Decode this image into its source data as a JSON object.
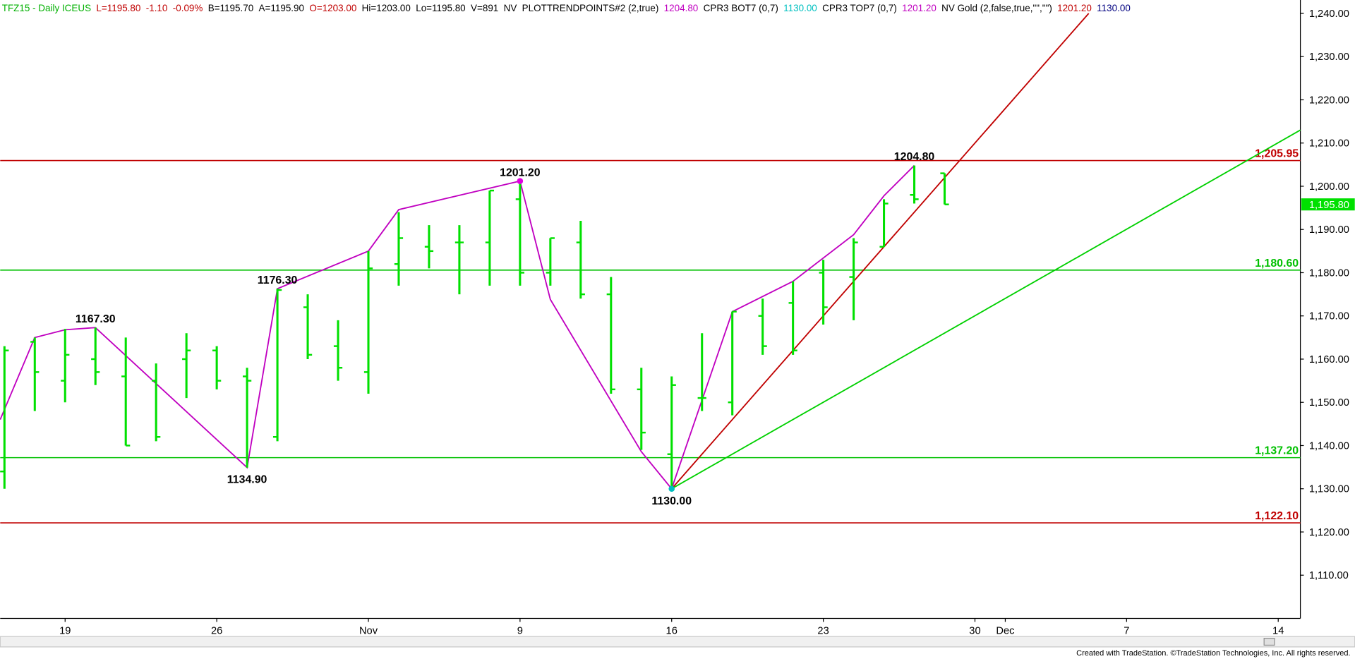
{
  "chart_data": {
    "type": "ohlc",
    "header": [
      {
        "text": "TFZ15 - Daily  ICEUS",
        "color": "#00b000"
      },
      {
        "text": "L=1195.80",
        "color": "#c00000"
      },
      {
        "text": "-1.10",
        "color": "#c00000"
      },
      {
        "text": "-0.09%",
        "color": "#c00000"
      },
      {
        "text": "B=1195.70",
        "color": "#000000"
      },
      {
        "text": "A=1195.90",
        "color": "#000000"
      },
      {
        "text": "O=1203.00",
        "color": "#c00000"
      },
      {
        "text": "Hi=1203.00",
        "color": "#000000"
      },
      {
        "text": "Lo=1195.80",
        "color": "#000000"
      },
      {
        "text": "V=891",
        "color": "#000000"
      },
      {
        "text": "NV",
        "color": "#000000"
      },
      {
        "text": "PLOTTRENDPOINTS#2 (2,true)",
        "color": "#000000"
      },
      {
        "text": "1204.80",
        "color": "#c000c0"
      },
      {
        "text": "CPR3 BOT7 (0,7)",
        "color": "#000000"
      },
      {
        "text": "1130.00",
        "color": "#00c0c0"
      },
      {
        "text": "CPR3 TOP7 (0,7)",
        "color": "#000000"
      },
      {
        "text": "1201.20",
        "color": "#c000c0"
      },
      {
        "text": "NV Gold (2,false,true,\"\",\"\")",
        "color": "#000000"
      },
      {
        "text": "1201.20",
        "color": "#c00000"
      },
      {
        "text": "1130.00",
        "color": "#000080"
      }
    ],
    "footer": "Created with TradeStation. ©TradeStation Technologies, Inc. All rights reserved.",
    "bar_color": "#00e000",
    "ohlc": {
      "x": [
        0,
        1,
        2,
        3,
        4,
        5,
        6,
        7,
        8,
        9,
        10,
        11,
        12,
        13,
        14,
        15,
        16,
        17,
        18,
        19,
        20,
        21,
        22,
        23,
        24,
        25,
        26,
        27,
        28,
        29,
        30,
        31
      ],
      "open": [
        1134,
        1164,
        1155,
        1160,
        1156,
        1155,
        1160,
        1162,
        1156,
        1142,
        1172,
        1163,
        1157,
        1182,
        1186,
        1187,
        1187,
        1197,
        1180,
        1187,
        1175,
        1153,
        1138,
        1151,
        1150,
        1170,
        1173,
        1180,
        1179,
        1186,
        1198,
        1203
      ],
      "high": [
        1163,
        1165,
        1167,
        1167.3,
        1165,
        1159,
        1166,
        1163,
        1158,
        1176.3,
        1175,
        1169,
        1185,
        1194,
        1191,
        1191,
        1199,
        1201.2,
        1188,
        1192,
        1179,
        1158,
        1156,
        1166,
        1171,
        1174,
        1178,
        1183,
        1188,
        1197,
        1204.8,
        1203
      ],
      "low": [
        1130,
        1148,
        1150,
        1154,
        1140,
        1141,
        1151,
        1153,
        1134.9,
        1141,
        1160,
        1155,
        1152,
        1177,
        1181,
        1175,
        1177,
        1177,
        1177,
        1174,
        1152,
        1139,
        1130,
        1148,
        1147,
        1161,
        1161,
        1168,
        1169,
        1186,
        1196,
        1195.8
      ],
      "close": [
        1162,
        1157,
        1161,
        1157,
        1140,
        1142,
        1162,
        1155,
        1155,
        1176,
        1161,
        1158,
        1181,
        1188,
        1185,
        1187,
        1199,
        1180,
        1188,
        1175,
        1153,
        1143,
        1154,
        1151,
        1171,
        1163,
        1162,
        1172,
        1187,
        1196,
        1197,
        1195.8
      ]
    },
    "levels": [
      {
        "value": 1205.95,
        "label": "1,205.95",
        "color": "#c00000"
      },
      {
        "value": 1180.6,
        "label": "1,180.60",
        "color": "#00c000"
      },
      {
        "value": 1137.2,
        "label": "1,137.20",
        "color": "#00c000"
      },
      {
        "value": 1122.1,
        "label": "1,122.10",
        "color": "#c00000"
      }
    ],
    "lines": [
      {
        "color": "#c000c0",
        "x": [
          -0.14,
          1,
          2,
          3,
          8,
          9,
          12,
          13,
          17,
          18,
          21,
          22,
          24,
          26,
          28,
          29,
          30
        ],
        "values": [
          1146,
          1165,
          1166.8,
          1167.3,
          1134.9,
          1176.3,
          1185,
          1194.6,
          1201.2,
          1173.8,
          1138.6,
          1130,
          1171,
          1178,
          1188.8,
          1197.8,
          1204.8
        ]
      },
      {
        "color": "#c00000",
        "x": [
          22,
          35.75
        ],
        "values": [
          1130,
          1240
        ]
      },
      {
        "color": "#00d000",
        "x": [
          22,
          42.73
        ],
        "values": [
          1130,
          1213
        ]
      }
    ],
    "markers": [
      {
        "x": 17,
        "value": 1201.2,
        "color": "#e000e0"
      },
      {
        "x": 22,
        "value": 1130,
        "color": "#00c0c0"
      }
    ],
    "annotations": [
      {
        "text": "1167.30",
        "x": 3,
        "value": 1167.3,
        "position": "above"
      },
      {
        "text": "1134.90",
        "x": 8,
        "value": 1134.9,
        "position": "below"
      },
      {
        "text": "1176.30",
        "x": 9,
        "value": 1176.3,
        "position": "above"
      },
      {
        "text": "1201.20",
        "x": 17,
        "value": 1201.2,
        "position": "above"
      },
      {
        "text": "1130.00",
        "x": 22,
        "value": 1130,
        "position": "below"
      },
      {
        "text": "1204.80",
        "x": 30,
        "value": 1204.8,
        "position": "above"
      }
    ],
    "last_price": {
      "value": 1195.8,
      "label": "1,195.80",
      "color": "#00e000"
    },
    "xlim": [
      -0.14,
      42.73
    ],
    "xticks": [
      {
        "value": 2,
        "label": "19"
      },
      {
        "value": 7,
        "label": "26"
      },
      {
        "value": 12,
        "label": "Nov"
      },
      {
        "value": 17,
        "label": "9"
      },
      {
        "value": 22,
        "label": "16"
      },
      {
        "value": 27,
        "label": "23"
      },
      {
        "value": 32,
        "label": "30"
      },
      {
        "value": 33,
        "label": "Dec"
      },
      {
        "value": 37,
        "label": "7"
      },
      {
        "value": 42,
        "label": "14"
      }
    ],
    "ylim": [
      1100,
      1242.5
    ],
    "yticks": [
      {
        "value": 1110,
        "label": "1,110.00"
      },
      {
        "value": 1120,
        "label": "1,120.00"
      },
      {
        "value": 1130,
        "label": "1,130.00"
      },
      {
        "value": 1140,
        "label": "1,140.00"
      },
      {
        "value": 1150,
        "label": "1,150.00"
      },
      {
        "value": 1160,
        "label": "1,160.00"
      },
      {
        "value": 1170,
        "label": "1,170.00"
      },
      {
        "value": 1180,
        "label": "1,180.00"
      },
      {
        "value": 1190,
        "label": "1,190.00"
      },
      {
        "value": 1200,
        "label": "1,200.00"
      },
      {
        "value": 1210,
        "label": "1,210.00"
      },
      {
        "value": 1220,
        "label": "1,220.00"
      },
      {
        "value": 1230,
        "label": "1,230.00"
      },
      {
        "value": 1240,
        "label": "1,240.00"
      }
    ]
  }
}
